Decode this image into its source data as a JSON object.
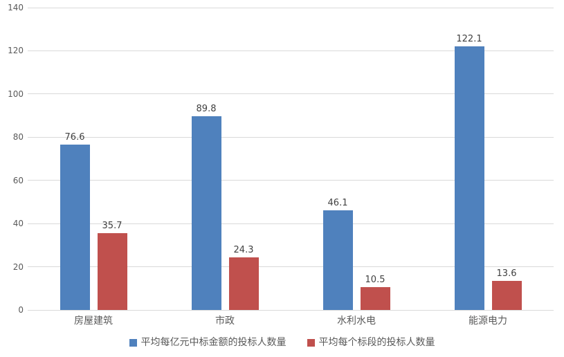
{
  "chart_data": {
    "type": "bar",
    "title": "",
    "xlabel": "",
    "ylabel": "",
    "categories": [
      "房屋建筑",
      "市政",
      "水利水电",
      "能源电力"
    ],
    "series": [
      {
        "name": "平均每亿元中标金额的投标人数量",
        "color": "#4F81BD",
        "values": [
          76.6,
          89.8,
          46.1,
          122.1
        ],
        "labels": [
          "76.6",
          "89.8",
          "46.1",
          "122.1"
        ]
      },
      {
        "name": "平均每个标段的投标人数量",
        "color": "#C0504D",
        "values": [
          35.7,
          24.3,
          10.5,
          13.6
        ],
        "labels": [
          "35.7",
          "24.3",
          "10.5",
          "13.6"
        ]
      }
    ],
    "ylim": [
      0,
      140
    ],
    "yticks": [
      0,
      20,
      40,
      60,
      80,
      100,
      120,
      140
    ],
    "grid": true,
    "legend_position": "bottom"
  },
  "colors": {
    "background": "#FFFFFF",
    "gridline": "#D9D9D9",
    "axis_text": "#595959",
    "data_label_text": "#404040"
  }
}
